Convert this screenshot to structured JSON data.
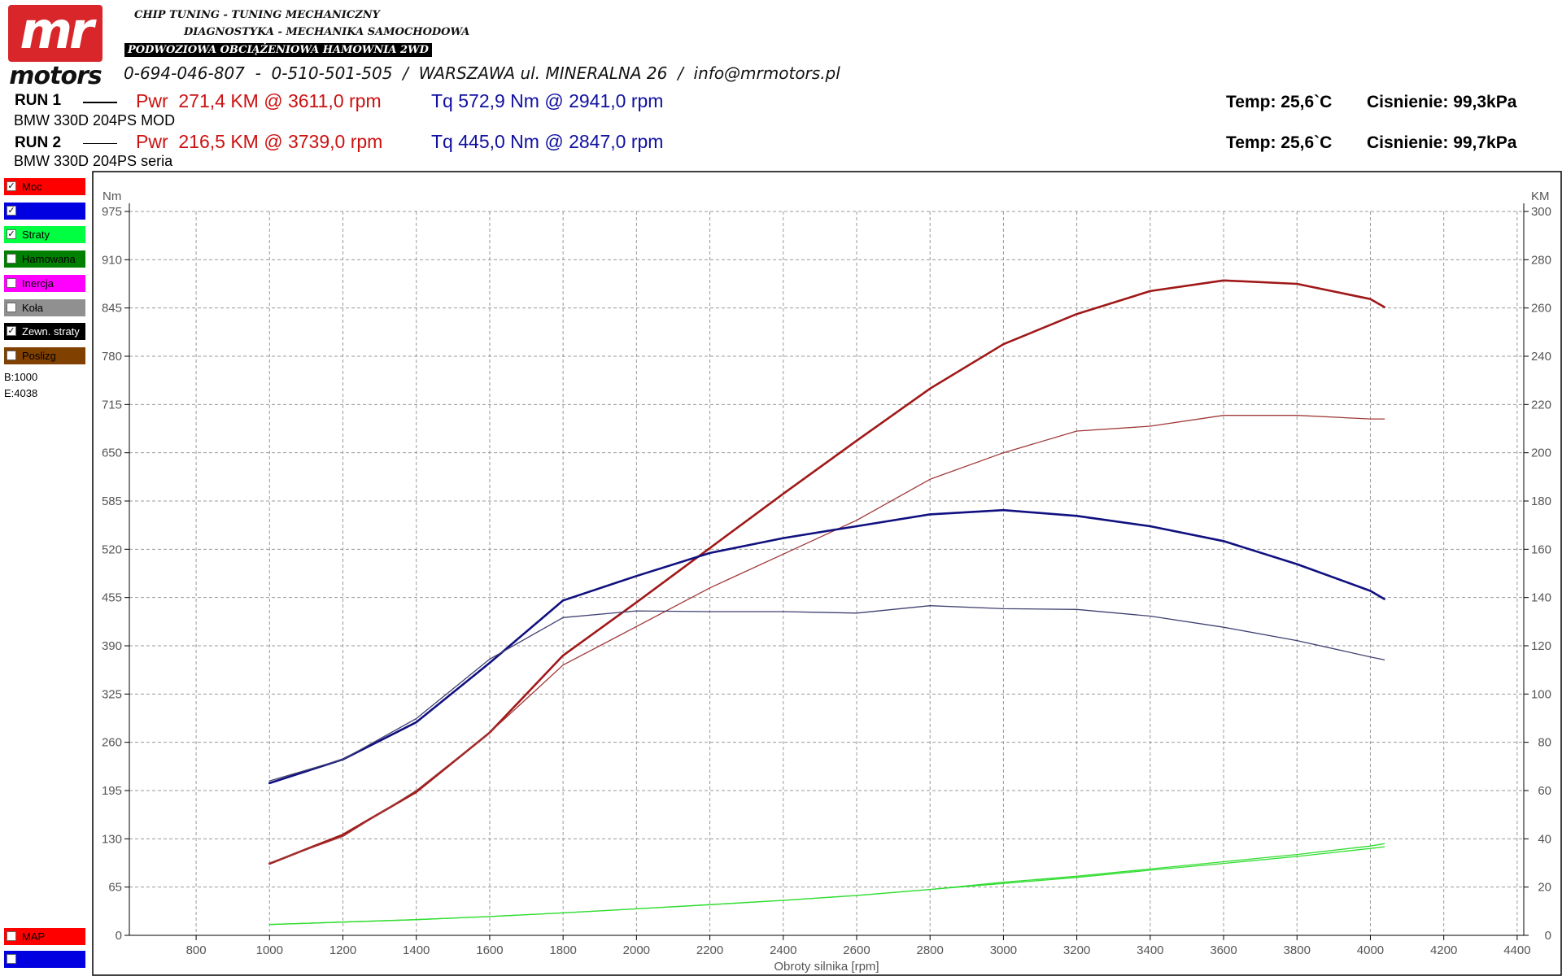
{
  "header": {
    "logo_top": "mr",
    "logo_bottom": "motors",
    "line1": "CHIP TUNING - TUNING MECHANICZNY",
    "line2": "DIAGNOSTYKA - MECHANIKA SAMOCHODOWA",
    "line3": "PODWOZIOWA OBCIĄŻENIOWA HAMOWNIA 2WD",
    "line4": "0-694-046-807  -  0-510-501-505  /  WARSZAWA ul. MINERALNA 26  /  info@mrmotors.pl"
  },
  "runs": [
    {
      "label": "RUN 1",
      "car": "BMW 330D 204PS MOD",
      "power": "Pwr  271,4 KM @ 3611,0 rpm",
      "torque": "Tq 572,9 Nm @ 2941,0 rpm",
      "temp": "Temp: 25,6`C",
      "pressure": "Cisnienie: 99,3kPa"
    },
    {
      "label": "RUN 2",
      "car": "BMW 330D 204PS seria",
      "power": "Pwr  216,5 KM @ 3739,0 rpm",
      "torque": "Tq 445,0 Nm @ 2847,0 rpm",
      "temp": "Temp: 25,6`C",
      "pressure": "Cisnienie: 99,7kPa"
    }
  ],
  "channels": [
    {
      "label": "Moc",
      "color": "#ff0000",
      "checked": true
    },
    {
      "color": "#0000e0",
      "checked": true
    },
    {
      "label": "Straty",
      "color": "#00ff40",
      "checked": true
    },
    {
      "label": "Hamowana",
      "color": "#008000",
      "checked": false
    },
    {
      "label": "Inercja",
      "color": "#ff00ff",
      "checked": false
    },
    {
      "label": "Koła",
      "color": "#909090",
      "checked": false
    },
    {
      "label": "Zewn. straty",
      "color": "#000000",
      "checked": true
    },
    {
      "label": "Poslizg",
      "color": "#804000",
      "checked": false
    }
  ],
  "range": {
    "begin": "B:1000",
    "end": "E:4038"
  },
  "bottom_channels": [
    {
      "label": "MAP",
      "color": "#ff0000",
      "checked": false
    },
    {
      "color": "#0000e0",
      "checked": false
    }
  ],
  "chart_data": {
    "type": "line",
    "x_label": "Obroty silnika [rpm]",
    "y_label": "Nm",
    "y2_label": "KM",
    "x": [
      1000,
      1200,
      1400,
      1600,
      1800,
      2000,
      2200,
      2400,
      2600,
      2800,
      3000,
      3200,
      3400,
      3600,
      3800,
      4000,
      4038
    ],
    "xlim": [
      618,
      4418
    ],
    "xticks": [
      800,
      1000,
      1200,
      1400,
      1600,
      1800,
      2000,
      2200,
      2400,
      2600,
      2800,
      3000,
      3200,
      3400,
      3600,
      3800,
      4000,
      4200,
      4400
    ],
    "ylim": [
      0,
      975
    ],
    "yticks": [
      0,
      65,
      130,
      195,
      260,
      325,
      390,
      455,
      520,
      585,
      650,
      715,
      780,
      845,
      910,
      975
    ],
    "y2lim": [
      0,
      300
    ],
    "y2ticks": [
      0,
      20,
      40,
      60,
      80,
      100,
      120,
      140,
      160,
      180,
      200,
      220,
      240,
      260,
      280,
      300
    ],
    "grid": true,
    "series": [
      {
        "color": "#a01818",
        "thick": true,
        "axis": "y2",
        "values": [
          29.7,
          41.7,
          59.4,
          84,
          116,
          138,
          160.5,
          183,
          205,
          226.6,
          245,
          257.5,
          267,
          271.4,
          270,
          263.7,
          260.4
        ]
      },
      {
        "color": "#a03838",
        "thick": false,
        "axis": "y2",
        "values": [
          30,
          41,
          60,
          84,
          112,
          128,
          144,
          158,
          172,
          189,
          200,
          209,
          211,
          215.5,
          215.5,
          214,
          214
        ]
      },
      {
        "color": "#101080",
        "thick": true,
        "values": [
          205,
          237,
          287,
          367,
          451,
          484,
          515,
          535,
          551,
          567,
          572.7,
          565,
          551,
          531,
          500,
          464,
          453
        ]
      },
      {
        "color": "#404070",
        "thick": false,
        "values": [
          208,
          237,
          292,
          372,
          428,
          437,
          436,
          436,
          434,
          444,
          440,
          439,
          430,
          415,
          397,
          375,
          371
        ]
      },
      {
        "color": "#30dd30",
        "thick": false,
        "axis": "y2",
        "values": [
          4.5,
          5.5,
          6.5,
          7.8,
          9.3,
          11,
          12.7,
          14.5,
          16.5,
          19,
          22,
          24.5,
          27.5,
          30.5,
          33.5,
          37,
          38
        ]
      },
      {
        "color": "#30dd30",
        "thick": false,
        "axis": "y2",
        "values": [
          4.5,
          5.5,
          6.5,
          7.8,
          9.3,
          11,
          12.7,
          14.5,
          16.5,
          19,
          21.5,
          24,
          27,
          29.8,
          32.7,
          36,
          36.7
        ]
      }
    ]
  }
}
